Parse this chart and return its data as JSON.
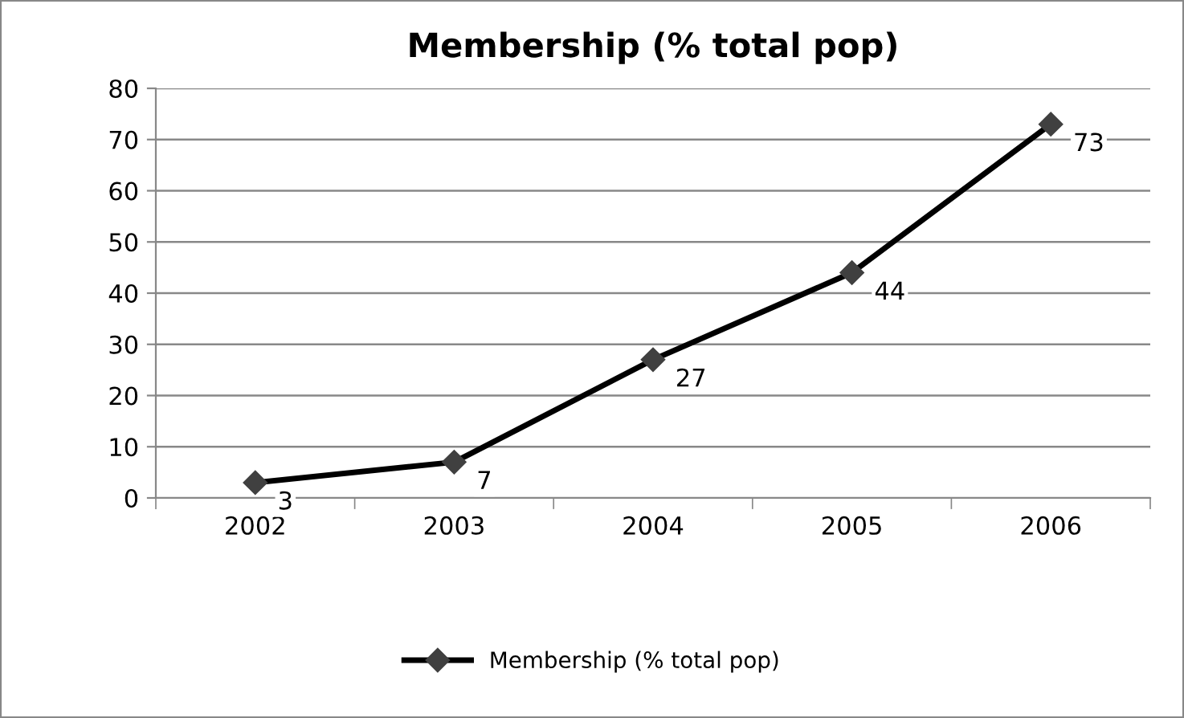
{
  "chart_data": {
    "type": "line",
    "title": "Membership (% total pop)",
    "categories": [
      "2002",
      "2003",
      "2004",
      "2005",
      "2006"
    ],
    "series": [
      {
        "name": "Membership (% total pop)",
        "color": "#000000",
        "values": [
          3,
          7,
          27,
          44,
          73
        ]
      }
    ],
    "ylim": [
      0,
      80
    ],
    "yticks": [
      0,
      10,
      20,
      30,
      40,
      50,
      60,
      70,
      80
    ],
    "grid": "y",
    "legend": "bottom",
    "marker": "diamond",
    "line_style": "solid",
    "data_labels": true
  }
}
